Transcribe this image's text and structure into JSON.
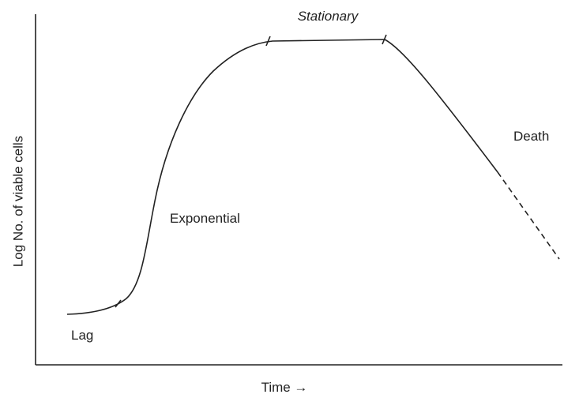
{
  "axes": {
    "y_label": "Log No. of viable cells",
    "x_label": "Time →"
  },
  "phases": [
    {
      "label": "Lag"
    },
    {
      "label": "Exponential"
    },
    {
      "label": "Stationary"
    },
    {
      "label": "Death"
    }
  ]
}
